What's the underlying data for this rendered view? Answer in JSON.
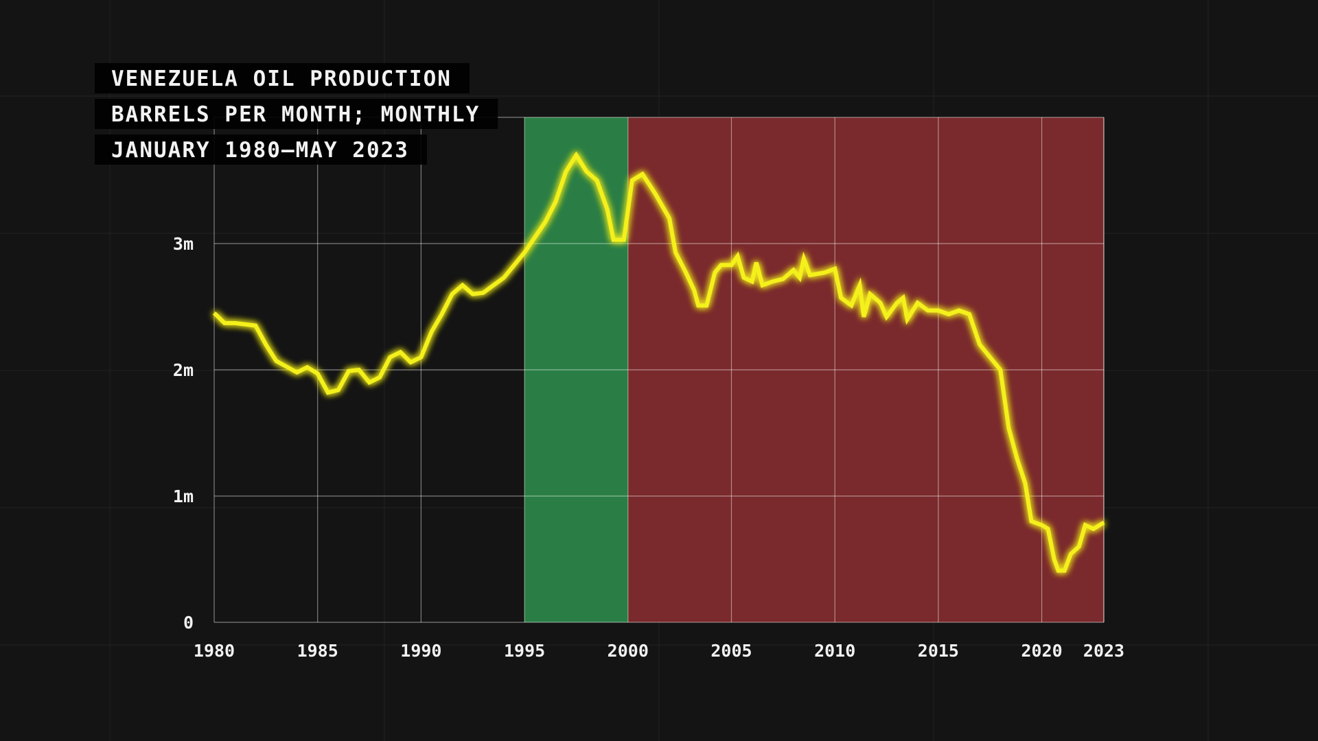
{
  "chart_data": {
    "type": "line",
    "title": "VENEZUELA OIL PRODUCTION",
    "subtitles": [
      "BARRELS PER MONTH; MONTHLY",
      "JANUARY 1980–MAY 2023"
    ],
    "x": [
      1980,
      1980.5,
      1981,
      1982,
      1982.5,
      1983,
      1984,
      1984.5,
      1985,
      1985.5,
      1986,
      1986.5,
      1987,
      1987.5,
      1988,
      1988.5,
      1989,
      1989.5,
      1990,
      1990.5,
      1991,
      1991.5,
      1992,
      1992.5,
      1993,
      1994,
      1995,
      1996,
      1996.5,
      1997,
      1997.5,
      1998,
      1998.5,
      1999,
      1999.3,
      1999.8,
      2000.2,
      2000.7,
      2001.3,
      2002,
      2002.3,
      2002.8,
      2003.2,
      2003.4,
      2003.8,
      2004.2,
      2004.5,
      2005,
      2005.3,
      2005.6,
      2006,
      2006.2,
      2006.5,
      2007,
      2007.5,
      2008,
      2008.3,
      2008.5,
      2008.8,
      2009.5,
      2010,
      2010.3,
      2010.8,
      2011.2,
      2011.4,
      2011.7,
      2012.2,
      2012.5,
      2013,
      2013.3,
      2013.5,
      2014,
      2014.5,
      2015,
      2015.5,
      2016,
      2016.5,
      2017,
      2017.5,
      2018,
      2018.4,
      2018.8,
      2019.2,
      2019.5,
      2020,
      2020.3,
      2020.6,
      2020.8,
      2021.1,
      2021.4,
      2021.8,
      2022.1,
      2022.5,
      2023
    ],
    "values": [
      2450000,
      2370000,
      2370000,
      2350000,
      2200000,
      2070000,
      1980000,
      2020000,
      1970000,
      1820000,
      1840000,
      1990000,
      2000000,
      1900000,
      1940000,
      2100000,
      2140000,
      2060000,
      2100000,
      2300000,
      2440000,
      2600000,
      2670000,
      2600000,
      2610000,
      2730000,
      2930000,
      3170000,
      3330000,
      3570000,
      3700000,
      3570000,
      3500000,
      3270000,
      3030000,
      3030000,
      3500000,
      3550000,
      3400000,
      3200000,
      2930000,
      2770000,
      2630000,
      2510000,
      2510000,
      2770000,
      2830000,
      2830000,
      2900000,
      2730000,
      2700000,
      2850000,
      2670000,
      2700000,
      2720000,
      2790000,
      2730000,
      2880000,
      2750000,
      2770000,
      2800000,
      2570000,
      2510000,
      2670000,
      2420000,
      2600000,
      2530000,
      2420000,
      2530000,
      2570000,
      2400000,
      2530000,
      2470000,
      2470000,
      2440000,
      2470000,
      2440000,
      2200000,
      2100000,
      2000000,
      1540000,
      1300000,
      1100000,
      800000,
      770000,
      740000,
      500000,
      410000,
      410000,
      540000,
      600000,
      770000,
      740000,
      790000
    ],
    "line_color": "#f4f01e",
    "xlim": [
      1980,
      2023
    ],
    "xticks": [
      1980,
      1985,
      1990,
      1995,
      2000,
      2005,
      2010,
      2015,
      2020,
      2023
    ],
    "ylim": [
      0,
      4000000
    ],
    "yticks": [
      {
        "value": 0,
        "label": "0"
      },
      {
        "value": 1000000,
        "label": "1m"
      },
      {
        "value": 2000000,
        "label": "2m"
      },
      {
        "value": 3000000,
        "label": "3m"
      }
    ],
    "grid": true,
    "bands": [
      {
        "from": 1995,
        "to": 2000,
        "color": "#2a7e45"
      },
      {
        "from": 2000,
        "to": 2023,
        "color": "#7a2a2c"
      }
    ]
  }
}
